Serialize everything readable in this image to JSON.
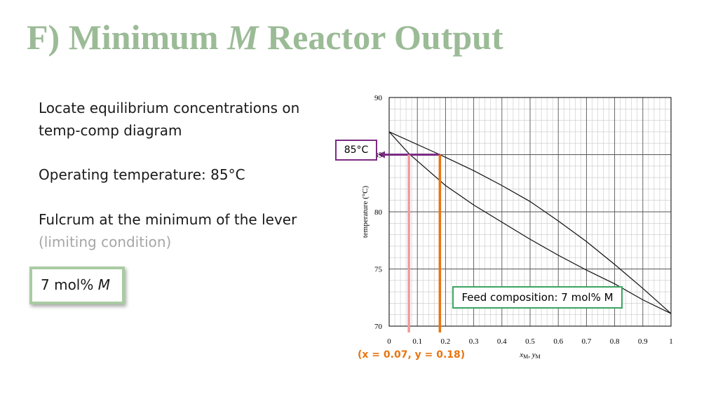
{
  "slide": {
    "title_prefix": "F) Minimum",
    "title_var": "M",
    "title_suffix": "Reactor Output",
    "lines": [
      "Locate equilibrium concentrations on",
      "temp-comp diagram",
      "Operating temperature: 85°C",
      "Fulcrum at the minimum of the lever",
      "(limiting condition)"
    ],
    "answer_value": "7 mol%",
    "answer_var": "M",
    "temp_label": "85°C",
    "feed_label": "Feed composition: 7 mol% M",
    "xy_note": "(x = 0.07, y = 0.18)"
  },
  "chart_data": {
    "type": "line",
    "xlabel_var": "x",
    "xlabel_sub": "M",
    "xlabel_var2": "y",
    "xlabel_sub2": "M",
    "ylabel": "temperature (°C)",
    "xlim": [
      0,
      1
    ],
    "ylim": [
      70,
      90
    ],
    "x_ticks": [
      "0",
      "0.1",
      "0.2",
      "0.3",
      "0.4",
      "0.5",
      "0.6",
      "0.7",
      "0.8",
      "0.9",
      "1"
    ],
    "y_ticks": [
      "70",
      "75",
      "80",
      "85",
      "90"
    ],
    "grid": true,
    "series": [
      {
        "x": [
          0,
          0.07,
          0.2,
          0.3,
          0.4,
          0.5,
          0.6,
          0.7,
          0.8,
          0.9,
          1.0
        ],
        "y": [
          87.0,
          85.1,
          82.3,
          80.6,
          79.1,
          77.6,
          76.2,
          74.9,
          73.7,
          72.3,
          71.1
        ]
      },
      {
        "x": [
          0,
          0.18,
          0.3,
          0.4,
          0.5,
          0.6,
          0.7,
          0.8,
          0.9,
          1.0
        ],
        "y": [
          87.0,
          85.0,
          83.6,
          82.3,
          80.9,
          79.2,
          77.4,
          75.4,
          73.3,
          71.1
        ]
      }
    ],
    "annotations": [
      {
        "kind": "operating_temperature",
        "y": 85,
        "x_to": 0.18,
        "color": "#7b2c83"
      },
      {
        "kind": "x_marker",
        "x": 0.07,
        "y_to": 85,
        "color": "#f29a9a"
      },
      {
        "kind": "y_marker",
        "x": 0.18,
        "y_to": 85,
        "color": "#e87511"
      }
    ]
  }
}
